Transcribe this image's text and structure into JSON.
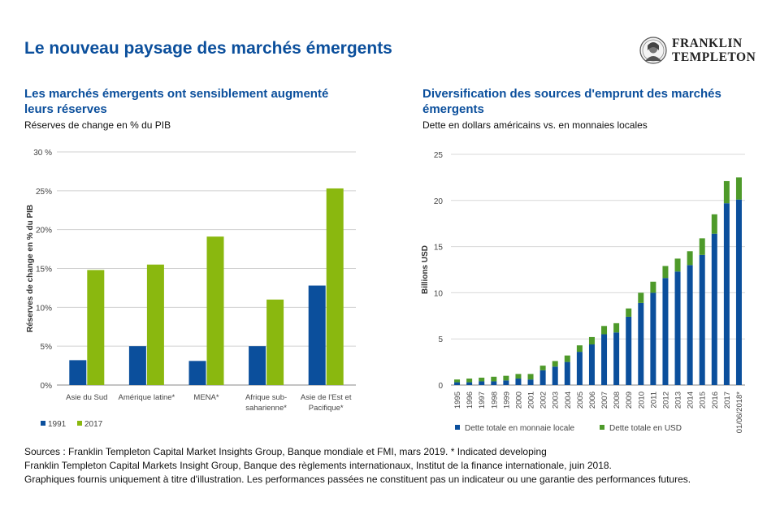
{
  "header": {
    "title": "Le nouveau paysage des marchés émergents",
    "logo_line1": "FRANKLIN",
    "logo_line2": "TEMPLETON"
  },
  "left_panel": {
    "title": "Les marchés émergents ont sensiblement augmenté leurs réserves",
    "subtitle": "Réserves de change en % du PIB"
  },
  "right_panel": {
    "title": "Diversification des sources d'emprunt des marchés émergents",
    "subtitle": "Dette en dollars américains vs. en monnaies locales"
  },
  "sources": [
    "Sources : Franklin Templeton Capital Market Insights Group, Banque mondiale et FMI, mars 2019. * Indicated developing",
    "Franklin Templeton Capital Markets Insight Group, Banque des règlements internationaux, Institut de la finance internationale, juin 2018.",
    "Graphiques fournis uniquement à titre d'illustration. Les performances passées ne constituent pas un indicateur ou une garantie des performances futures."
  ],
  "chart_data": [
    {
      "type": "bar",
      "title": "Les marchés émergents ont sensiblement augmenté leurs réserves",
      "subtitle": "Réserves de change en % du PIB",
      "ylabel": "Réserves de change en % du PIB",
      "xlabel": "",
      "ylim": [
        0,
        30
      ],
      "yticks": [
        "0%",
        "5%",
        "10%",
        "15%",
        "20%",
        "25%",
        "30 %"
      ],
      "categories": [
        "Asie du Sud",
        "Amérique latine*",
        "MENA*",
        "Afrique sub-saharienne*",
        "Asie de l'Est et Pacifique*"
      ],
      "category_label_lines": [
        [
          "Asie du Sud"
        ],
        [
          "Amérique latine*"
        ],
        [
          "MENA*"
        ],
        [
          "Afrique sub-",
          "saharienne*"
        ],
        [
          "Asie de l'Est et",
          "Pacifique*"
        ]
      ],
      "series": [
        {
          "name": "1991",
          "color": "#0b4f9c",
          "values": [
            3.2,
            5.0,
            3.1,
            5.0,
            12.8
          ]
        },
        {
          "name": "2017",
          "color": "#8ab80f",
          "values": [
            14.8,
            15.5,
            19.1,
            11.0,
            25.3
          ]
        }
      ],
      "grid": true,
      "legend": "bottom-left"
    },
    {
      "type": "bar",
      "stacked": true,
      "title": "Diversification des sources d'emprunt des marchés émergents",
      "subtitle": "Dette en dollars américains vs. en monnaies locales",
      "ylabel": "Billions USD",
      "xlabel": "",
      "ylim": [
        0,
        25
      ],
      "yticks": [
        "0",
        "5",
        "10",
        "15",
        "20",
        "25"
      ],
      "categories": [
        "1995",
        "1996",
        "1997",
        "1998",
        "1999",
        "2000",
        "2001",
        "2002",
        "2003",
        "2004",
        "2005",
        "2006",
        "2007",
        "2008",
        "2009",
        "2010",
        "2011",
        "2012",
        "2013",
        "2014",
        "2015",
        "2016",
        "2017",
        "01/06/2018*"
      ],
      "series": [
        {
          "name": "Dette totale en monnaie locale",
          "color": "#0b4f9c",
          "values": [
            0.3,
            0.3,
            0.4,
            0.4,
            0.5,
            0.7,
            0.6,
            1.6,
            2.0,
            2.5,
            3.6,
            4.4,
            5.5,
            5.7,
            7.4,
            8.9,
            10.0,
            11.6,
            12.3,
            13.0,
            14.1,
            16.4,
            19.7,
            20.1
          ]
        },
        {
          "name": "Dette totale en USD",
          "color": "#4e9a2a",
          "values": [
            0.3,
            0.4,
            0.4,
            0.5,
            0.5,
            0.5,
            0.6,
            0.5,
            0.6,
            0.7,
            0.7,
            0.8,
            0.9,
            1.0,
            0.9,
            1.1,
            1.2,
            1.3,
            1.4,
            1.5,
            1.8,
            2.1,
            2.4,
            2.4
          ]
        }
      ],
      "grid": true,
      "legend": "bottom"
    }
  ]
}
